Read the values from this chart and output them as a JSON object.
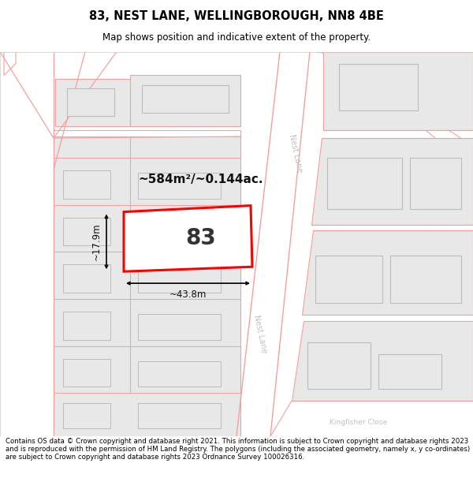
{
  "title": "83, NEST LANE, WELLINGBOROUGH, NN8 4BE",
  "subtitle": "Map shows position and indicative extent of the property.",
  "footer": "Contains OS data © Crown copyright and database right 2021. This information is subject to Crown copyright and database rights 2023 and is reproduced with the permission of HM Land Registry. The polygons (including the associated geometry, namely x, y co-ordinates) are subject to Crown copyright and database rights 2023 Ordnance Survey 100026316.",
  "area_label": "~584m²/~0.144ac.",
  "width_label": "~43.8m",
  "height_label": "~17.9m",
  "property_number": "83",
  "map_bg": "#ffffff",
  "bld_fill": "#e8e8e8",
  "bld_edge": "#f5a0a0",
  "road_outline": "#f5a0a0",
  "highlight_edge": "#ff0000",
  "road_label_color": "#c0c0c0",
  "dim_color": "#111111",
  "area_color": "#111111"
}
